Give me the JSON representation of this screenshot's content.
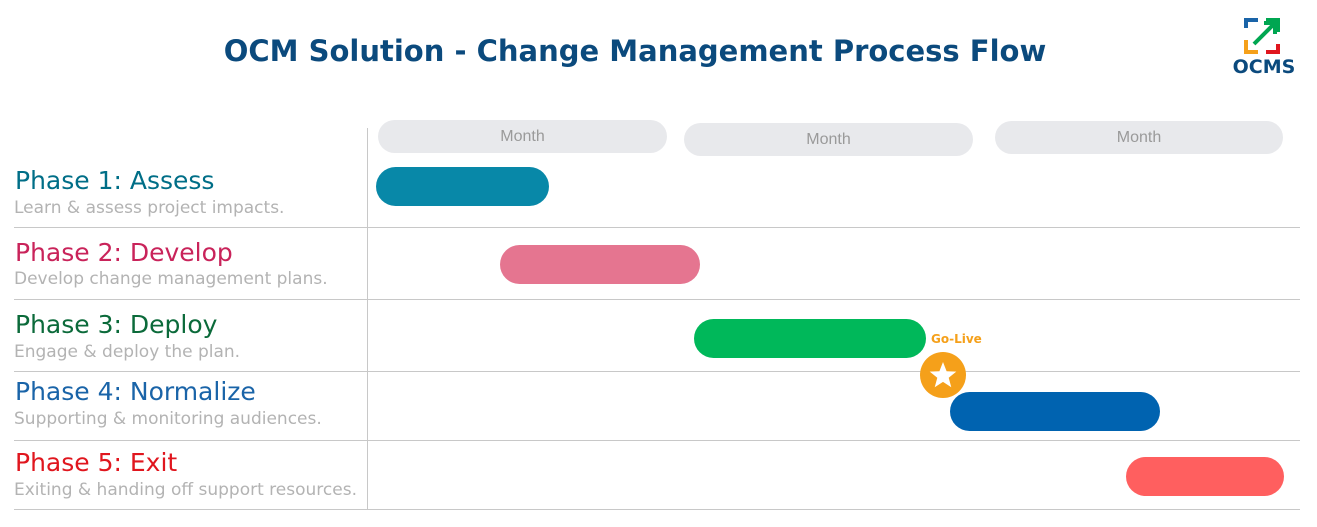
{
  "header": {
    "title": "OCM Solution - Change Management Process Flow",
    "logo_text": "OCMS"
  },
  "months": [
    "Month",
    "Month",
    "Month"
  ],
  "phases": [
    {
      "title": "Phase 1: Assess",
      "subtitle": "Learn & assess project impacts.",
      "color": "#006e87"
    },
    {
      "title": "Phase 2: Develop",
      "subtitle": "Develop change management plans.",
      "color": "#c9235a"
    },
    {
      "title": "Phase 3: Deploy",
      "subtitle": "Engage & deploy the plan.",
      "color": "#0b6a3a"
    },
    {
      "title": "Phase 4: Normalize",
      "subtitle": "Supporting & monitoring audiences.",
      "color": "#1a64a8"
    },
    {
      "title": "Phase 5: Exit",
      "subtitle": "Exiting & handing off support resources.",
      "color": "#e0161e"
    }
  ],
  "bar_colors": [
    "#0888a8",
    "#e57590",
    "#00b85a",
    "#0063b0",
    "#ff5f5f"
  ],
  "milestone": {
    "label": "Go-Live",
    "icon": "star-icon",
    "color": "#f5a01a"
  }
}
